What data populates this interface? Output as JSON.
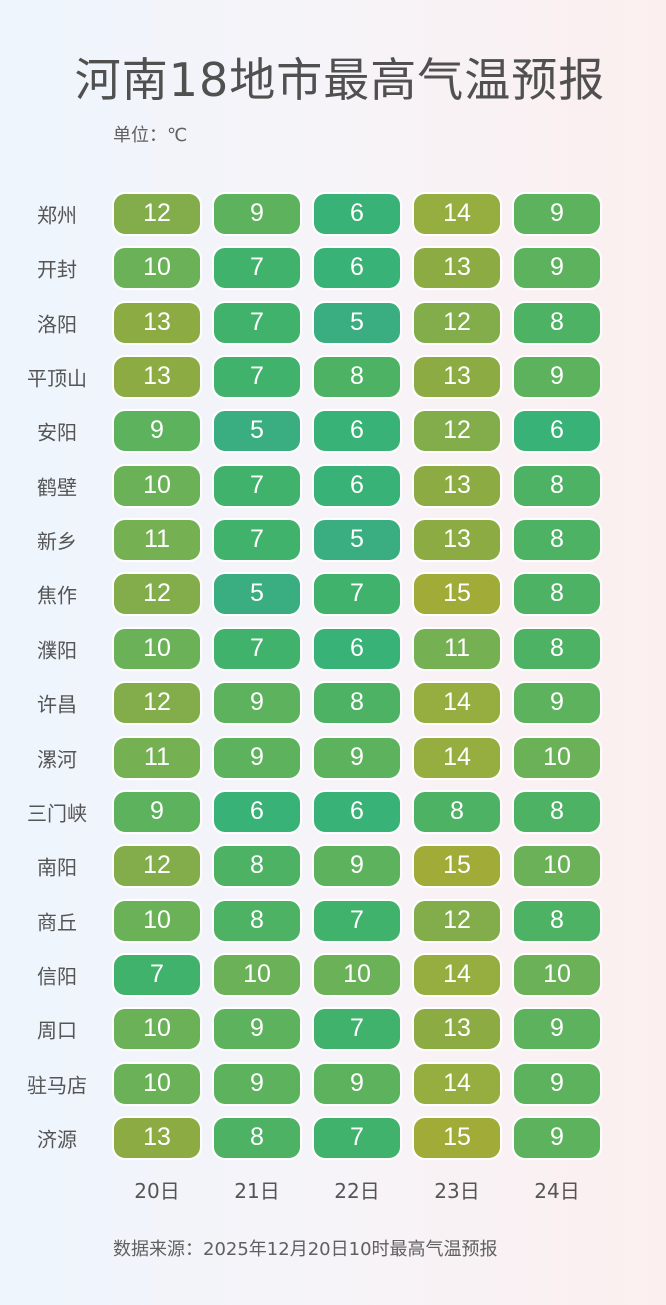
{
  "title": "河南18地市最高气温预报",
  "unit": "单位：℃",
  "source": "数据来源：2025年12月20日10时最高气温预报",
  "chart_data": {
    "type": "heatmap",
    "title": "河南18地市最高气温预报",
    "columns": [
      "20日",
      "21日",
      "22日",
      "23日",
      "24日"
    ],
    "rows": [
      "郑州",
      "开封",
      "洛阳",
      "平顶山",
      "安阳",
      "鹤壁",
      "新乡",
      "焦作",
      "濮阳",
      "许昌",
      "漯河",
      "三门峡",
      "南阳",
      "商丘",
      "信阳",
      "周口",
      "驻马店",
      "济源"
    ],
    "values": [
      [
        12,
        9,
        6,
        14,
        9
      ],
      [
        10,
        7,
        6,
        13,
        9
      ],
      [
        13,
        7,
        5,
        12,
        8
      ],
      [
        13,
        7,
        8,
        13,
        9
      ],
      [
        9,
        5,
        6,
        12,
        6
      ],
      [
        10,
        7,
        6,
        13,
        8
      ],
      [
        11,
        7,
        5,
        13,
        8
      ],
      [
        12,
        5,
        7,
        15,
        8
      ],
      [
        10,
        7,
        6,
        11,
        8
      ],
      [
        12,
        9,
        8,
        14,
        9
      ],
      [
        11,
        9,
        9,
        14,
        10
      ],
      [
        9,
        6,
        6,
        8,
        8
      ],
      [
        12,
        8,
        9,
        15,
        10
      ],
      [
        10,
        8,
        7,
        12,
        8
      ],
      [
        7,
        10,
        10,
        14,
        10
      ],
      [
        10,
        9,
        7,
        13,
        9
      ],
      [
        10,
        9,
        9,
        14,
        9
      ],
      [
        13,
        8,
        7,
        15,
        9
      ]
    ],
    "color_scale": {
      "5": "#3aae80",
      "6": "#38b276",
      "7": "#40b26c",
      "8": "#4eb264",
      "9": "#5db25e",
      "10": "#6bb158",
      "11": "#75b052",
      "12": "#82ad4a",
      "13": "#8cab43",
      "14": "#96ad3f",
      "15": "#a1ac38"
    }
  }
}
